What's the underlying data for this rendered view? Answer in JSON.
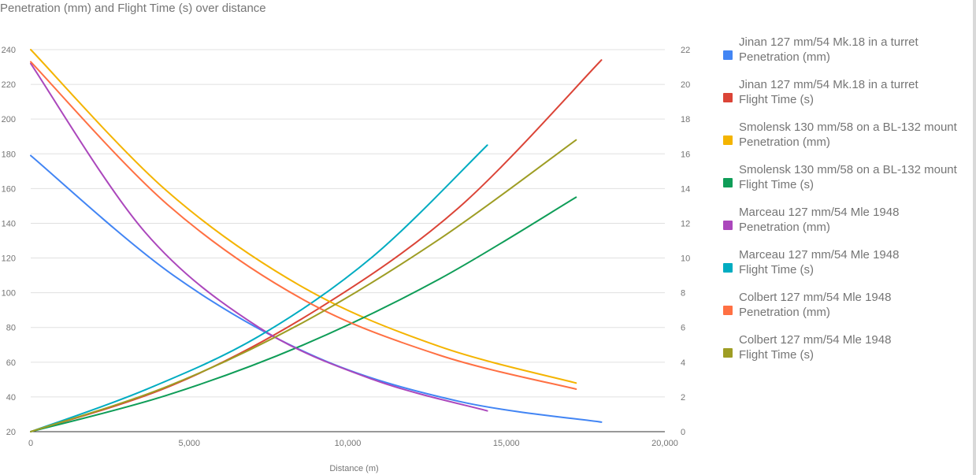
{
  "chart_data": {
    "type": "line",
    "title": "Penetration (mm) and Flight Time (s) over distance",
    "xlabel": "Distance (m)",
    "ylabel": "",
    "xlim": [
      0,
      20000
    ],
    "ylim_left": [
      20,
      240
    ],
    "ylim_right": [
      0,
      22
    ],
    "x_ticks": [
      "0",
      "5,000",
      "10,000",
      "15,000",
      "20,000"
    ],
    "y_left_ticks": [
      "20",
      "40",
      "60",
      "80",
      "100",
      "120",
      "140",
      "160",
      "180",
      "200",
      "220",
      "240"
    ],
    "y_right_ticks": [
      "0",
      "2",
      "4",
      "6",
      "8",
      "10",
      "12",
      "14",
      "16",
      "18",
      "20",
      "22"
    ],
    "grid": true,
    "legend_position": "right",
    "series": [
      {
        "line1": "Jinan 127 mm/54 Mk.18 in a turret",
        "line2": "Penetration (mm)",
        "axis": "left",
        "color": "#4285f4",
        "points": [
          [
            0,
            179
          ],
          [
            4500,
            110
          ],
          [
            9000,
            63
          ],
          [
            13500,
            37.5
          ],
          [
            18000,
            25.5
          ]
        ]
      },
      {
        "line1": "Jinan 127 mm/54 Mk.18 in a turret",
        "line2": "Flight Time (s)",
        "axis": "right",
        "color": "#db4437",
        "points": [
          [
            0,
            0
          ],
          [
            4500,
            2.7
          ],
          [
            9000,
            7
          ],
          [
            13500,
            12.9
          ],
          [
            18000,
            21.4
          ]
        ]
      },
      {
        "line1": "Smolensk 130 mm/58 on a BL-132 mount",
        "line2": "Penetration (mm)",
        "axis": "left",
        "color": "#f4b400",
        "points": [
          [
            0,
            240
          ],
          [
            4300,
            158.5
          ],
          [
            8600,
            103
          ],
          [
            12900,
            69
          ],
          [
            17200,
            48
          ]
        ]
      },
      {
        "line1": "Smolensk 130 mm/58 on a BL-132 mount",
        "line2": "Flight Time (s)",
        "axis": "right",
        "color": "#0f9d58",
        "points": [
          [
            0,
            0
          ],
          [
            4300,
            2.1
          ],
          [
            8600,
            5
          ],
          [
            12900,
            8.8
          ],
          [
            17200,
            13.5
          ]
        ]
      },
      {
        "line1": "Marceau 127 mm/54 Mle 1948",
        "line2": "Penetration (mm)",
        "axis": "left",
        "color": "#ab47bc",
        "points": [
          [
            0,
            232
          ],
          [
            3600,
            135
          ],
          [
            7200,
            80
          ],
          [
            10800,
            50
          ],
          [
            14400,
            32
          ]
        ]
      },
      {
        "line1": "Marceau 127 mm/54 Mle 1948",
        "line2": "Flight Time (s)",
        "axis": "right",
        "color": "#00acc1",
        "points": [
          [
            0,
            0
          ],
          [
            3600,
            2.4
          ],
          [
            7200,
            5.5
          ],
          [
            10800,
            10.1
          ],
          [
            14400,
            16.5
          ]
        ]
      },
      {
        "line1": "Colbert 127 mm/54 Mle 1948",
        "line2": "Penetration (mm)",
        "axis": "left",
        "color": "#ff7043",
        "points": [
          [
            0,
            233
          ],
          [
            4300,
            151
          ],
          [
            8600,
            96
          ],
          [
            12900,
            64
          ],
          [
            17200,
            44.5
          ]
        ]
      },
      {
        "line1": "Colbert 127 mm/54 Mle 1948",
        "line2": "Flight Time (s)",
        "axis": "right",
        "color": "#9e9d24",
        "points": [
          [
            0,
            0
          ],
          [
            4300,
            2.6
          ],
          [
            8600,
            6.3
          ],
          [
            12900,
            11.1
          ],
          [
            17200,
            16.8
          ]
        ]
      }
    ]
  }
}
